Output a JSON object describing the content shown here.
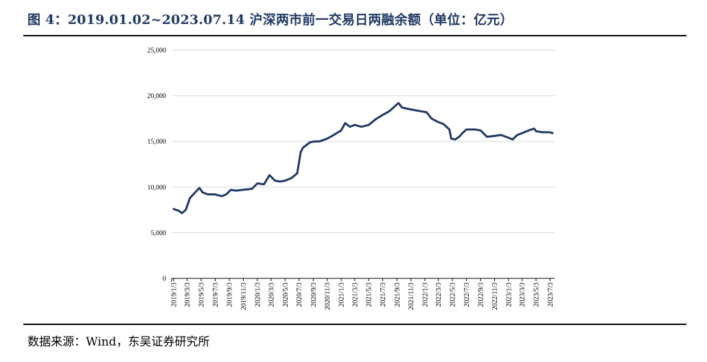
{
  "header": {
    "title": "图 4：2019.01.02~2023.07.14 沪深两市前一交易日两融余额（单位：亿元）"
  },
  "footer": {
    "source": "数据来源：Wind，东吴证券研究所"
  },
  "colors": {
    "line": "#203864",
    "gridline": "#d9d9d9",
    "axis": "#000000",
    "title": "#1f3864"
  },
  "chart_data": {
    "type": "line",
    "title": "",
    "xlabel": "",
    "ylabel": "",
    "ylim": [
      0,
      25000
    ],
    "yticks": [
      "0",
      "5,000",
      "10,000",
      "15,000",
      "20,000",
      "25,000"
    ],
    "ytick_values": [
      0,
      5000,
      10000,
      15000,
      20000,
      25000
    ],
    "grid": "horizontal",
    "legend": "none",
    "xticks": [
      "2019/1/3",
      "2019/3/3",
      "2019/5/3",
      "2019/7/3",
      "2019/9/3",
      "2019/11/3",
      "2020/1/3",
      "2020/3/3",
      "2020/5/3",
      "2020/7/3",
      "2020/9/3",
      "2020/11/3",
      "2021/1/3",
      "2021/3/3",
      "2021/5/3",
      "2021/7/3",
      "2021/9/3",
      "2021/11/3",
      "2022/1/3",
      "2022/3/3",
      "2022/5/3",
      "2022/7/3",
      "2022/9/3",
      "2022/11/3",
      "2023/1/3",
      "2023/3/3",
      "2023/5/3",
      "2023/7/3"
    ],
    "series": [
      {
        "points": [
          [
            "2019/1/3",
            7600
          ],
          [
            "2019/1/25",
            7400
          ],
          [
            "2019/2/8",
            7150
          ],
          [
            "2019/2/25",
            7500
          ],
          [
            "2019/3/15",
            8800
          ],
          [
            "2019/4/10",
            9500
          ],
          [
            "2019/4/25",
            9900
          ],
          [
            "2019/5/10",
            9400
          ],
          [
            "2019/6/1",
            9200
          ],
          [
            "2019/7/1",
            9200
          ],
          [
            "2019/8/1",
            9000
          ],
          [
            "2019/8/20",
            9200
          ],
          [
            "2019/9/10",
            9700
          ],
          [
            "2019/10/1",
            9600
          ],
          [
            "2019/11/3",
            9700
          ],
          [
            "2019/12/10",
            9800
          ],
          [
            "2020/1/3",
            10400
          ],
          [
            "2020/2/1",
            10300
          ],
          [
            "2020/2/25",
            11300
          ],
          [
            "2020/3/20",
            10700
          ],
          [
            "2020/4/10",
            10600
          ],
          [
            "2020/5/3",
            10700
          ],
          [
            "2020/6/1",
            11000
          ],
          [
            "2020/6/25",
            11500
          ],
          [
            "2020/7/10",
            13800
          ],
          [
            "2020/7/20",
            14300
          ],
          [
            "2020/8/20",
            14900
          ],
          [
            "2020/9/10",
            15000
          ],
          [
            "2020/10/1",
            15000
          ],
          [
            "2020/11/3",
            15300
          ],
          [
            "2020/12/1",
            15700
          ],
          [
            "2021/1/3",
            16200
          ],
          [
            "2021/1/20",
            17000
          ],
          [
            "2021/2/10",
            16600
          ],
          [
            "2021/3/3",
            16800
          ],
          [
            "2021/4/1",
            16600
          ],
          [
            "2021/5/3",
            16800
          ],
          [
            "2021/6/1",
            17400
          ],
          [
            "2021/7/3",
            17900
          ],
          [
            "2021/8/1",
            18300
          ],
          [
            "2021/9/1",
            19000
          ],
          [
            "2021/9/10",
            19200
          ],
          [
            "2021/9/25",
            18700
          ],
          [
            "2021/11/3",
            18500
          ],
          [
            "2021/12/15",
            18300
          ],
          [
            "2022/1/10",
            18200
          ],
          [
            "2022/2/1",
            17500
          ],
          [
            "2022/3/3",
            17100
          ],
          [
            "2022/3/25",
            16900
          ],
          [
            "2022/4/20",
            16300
          ],
          [
            "2022/4/28",
            15300
          ],
          [
            "2022/5/15",
            15200
          ],
          [
            "2022/6/1",
            15500
          ],
          [
            "2022/6/20",
            16000
          ],
          [
            "2022/7/3",
            16300
          ],
          [
            "2022/8/10",
            16300
          ],
          [
            "2022/9/3",
            16200
          ],
          [
            "2022/10/1",
            15500
          ],
          [
            "2022/11/3",
            15600
          ],
          [
            "2022/12/1",
            15700
          ],
          [
            "2023/1/3",
            15400
          ],
          [
            "2023/1/20",
            15200
          ],
          [
            "2023/2/10",
            15700
          ],
          [
            "2023/3/3",
            15900
          ],
          [
            "2023/4/1",
            16200
          ],
          [
            "2023/4/25",
            16400
          ],
          [
            "2023/5/3",
            16100
          ],
          [
            "2023/6/1",
            16000
          ],
          [
            "2023/7/3",
            16000
          ],
          [
            "2023/7/14",
            15900
          ]
        ]
      }
    ]
  }
}
